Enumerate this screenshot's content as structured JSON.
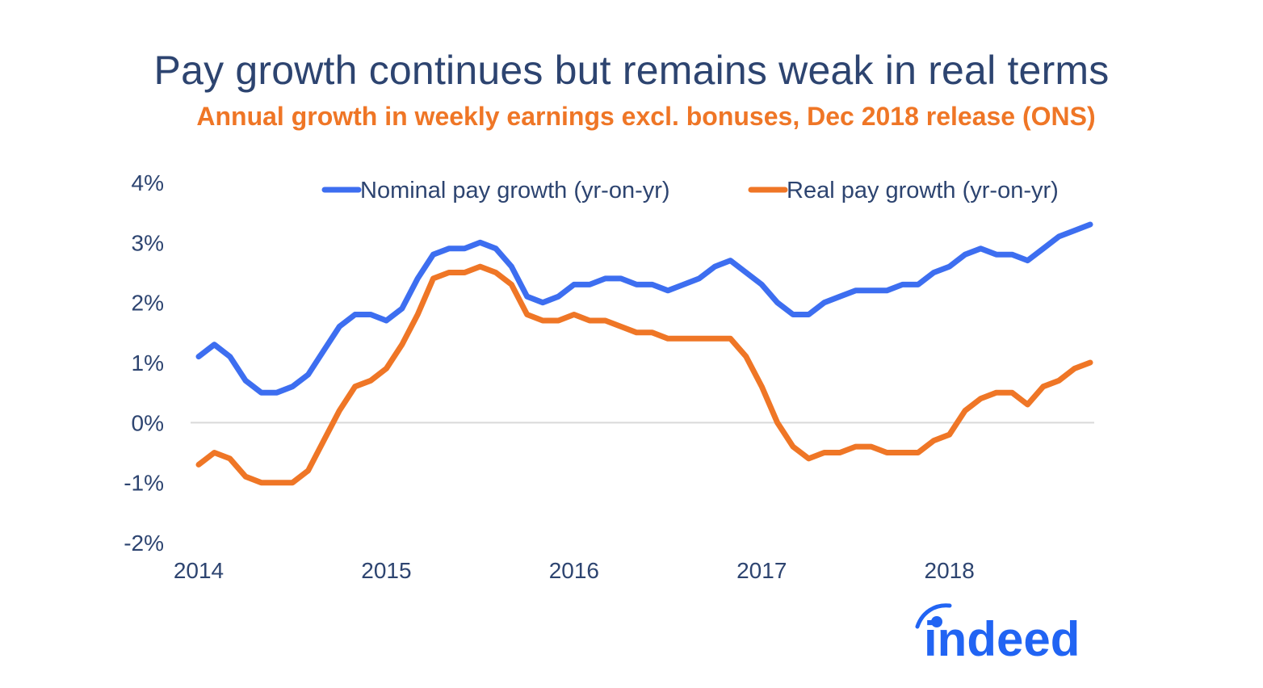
{
  "header": {
    "title": "Pay growth continues but remains weak in real terms",
    "subtitle": "Annual growth in weekly earnings excl. bonuses, Dec 2018 release (ONS)"
  },
  "logo": {
    "text": "indeed",
    "color": "#2164f3"
  },
  "chart_data": {
    "type": "line",
    "title": "Pay growth continues but remains weak in real terms",
    "subtitle": "Annual growth in weekly earnings excl. bonuses, Dec 2018 release (ONS)",
    "xlabel": "",
    "ylabel": "",
    "ylim": [
      -2,
      4
    ],
    "yticks": [
      4,
      3,
      2,
      1,
      0,
      -1,
      -2
    ],
    "ytick_labels": [
      "4%",
      "3%",
      "2%",
      "1%",
      "0%",
      "-1%",
      "-2%"
    ],
    "xticks": [
      0,
      12,
      24,
      36,
      48
    ],
    "xtick_labels": [
      "2014",
      "2015",
      "2016",
      "2017",
      "2018"
    ],
    "x_start": "Jan 2014",
    "x_end": "Oct 2018",
    "zero_line": true,
    "legend_position": "top",
    "series": [
      {
        "name": "Nominal pay growth (yr-on-yr)",
        "color": "#3d6ef0",
        "values": [
          1.1,
          1.3,
          1.1,
          0.7,
          0.5,
          0.5,
          0.6,
          0.8,
          1.2,
          1.6,
          1.8,
          1.8,
          1.7,
          1.9,
          2.4,
          2.8,
          2.9,
          2.9,
          3.0,
          2.9,
          2.6,
          2.1,
          2.0,
          2.1,
          2.3,
          2.3,
          2.4,
          2.4,
          2.3,
          2.3,
          2.2,
          2.3,
          2.4,
          2.6,
          2.7,
          2.5,
          2.3,
          2.0,
          1.8,
          1.8,
          2.0,
          2.1,
          2.2,
          2.2,
          2.2,
          2.3,
          2.3,
          2.5,
          2.6,
          2.8,
          2.9,
          2.8,
          2.8,
          2.7,
          2.9,
          3.1,
          3.2,
          3.3
        ]
      },
      {
        "name": "Real pay growth (yr-on-yr)",
        "color": "#ef7626",
        "values": [
          -0.7,
          -0.5,
          -0.6,
          -0.9,
          -1.0,
          -1.0,
          -1.0,
          -0.8,
          -0.3,
          0.2,
          0.6,
          0.7,
          0.9,
          1.3,
          1.8,
          2.4,
          2.5,
          2.5,
          2.6,
          2.5,
          2.3,
          1.8,
          1.7,
          1.7,
          1.8,
          1.7,
          1.7,
          1.6,
          1.5,
          1.5,
          1.4,
          1.4,
          1.4,
          1.4,
          1.4,
          1.1,
          0.6,
          0.0,
          -0.4,
          -0.6,
          -0.5,
          -0.5,
          -0.4,
          -0.4,
          -0.5,
          -0.5,
          -0.5,
          -0.3,
          -0.2,
          0.2,
          0.4,
          0.5,
          0.5,
          0.3,
          0.6,
          0.7,
          0.9,
          1.0
        ]
      }
    ]
  }
}
